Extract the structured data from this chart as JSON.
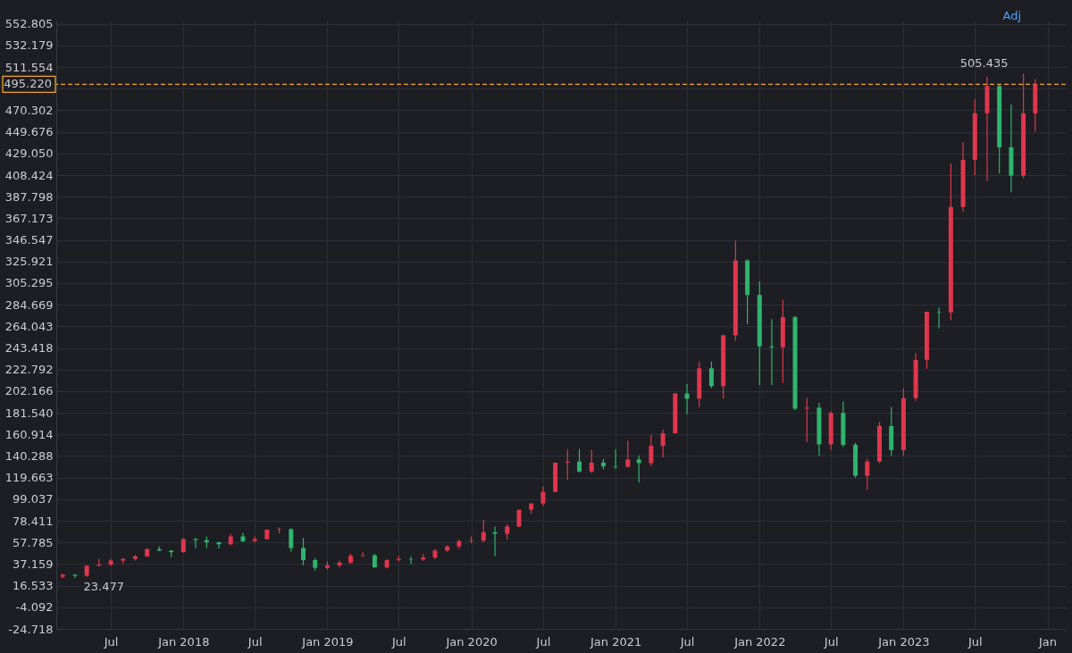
{
  "chart_data": {
    "type": "candlestick",
    "x": [
      "2017-03",
      "2017-04",
      "2017-05",
      "2017-06",
      "2017-07",
      "2017-08",
      "2017-09",
      "2017-10",
      "2017-11",
      "2017-12",
      "2018-01",
      "2018-02",
      "2018-03",
      "2018-04",
      "2018-05",
      "2018-06",
      "2018-07",
      "2018-08",
      "2018-09",
      "2018-10",
      "2018-11",
      "2018-12",
      "2019-01",
      "2019-02",
      "2019-03",
      "2019-04",
      "2019-05",
      "2019-06",
      "2019-07",
      "2019-08",
      "2019-09",
      "2019-10",
      "2019-11",
      "2019-12",
      "2020-01",
      "2020-02",
      "2020-03",
      "2020-04",
      "2020-05",
      "2020-06",
      "2020-07",
      "2020-08",
      "2020-09",
      "2020-10",
      "2020-11",
      "2020-12",
      "2021-01",
      "2021-02",
      "2021-03",
      "2021-04",
      "2021-05",
      "2021-06",
      "2021-07",
      "2021-08",
      "2021-09",
      "2021-10",
      "2021-11",
      "2021-12",
      "2022-01",
      "2022-02",
      "2022-03",
      "2022-04",
      "2022-05",
      "2022-06",
      "2022-07",
      "2022-08",
      "2022-09",
      "2022-10",
      "2022-11",
      "2022-12",
      "2023-01",
      "2023-02",
      "2023-03",
      "2023-04",
      "2023-05",
      "2023-06",
      "2023-07",
      "2023-08",
      "2023-09",
      "2023-10",
      "2023-11",
      "2023-12"
    ],
    "ohlc": [
      [
        25,
        28,
        23.477,
        27
      ],
      [
        27,
        27.5,
        24,
        26
      ],
      [
        26,
        36,
        25,
        35.5
      ],
      [
        35.5,
        42,
        35,
        36.5
      ],
      [
        36.5,
        42,
        35.5,
        40.5
      ],
      [
        40.5,
        43,
        37,
        42
      ],
      [
        42,
        46,
        40.5,
        44.5
      ],
      [
        44.5,
        52,
        44,
        51.5
      ],
      [
        51.5,
        54,
        49.5,
        50
      ],
      [
        50,
        50.5,
        44,
        48.5
      ],
      [
        48.5,
        62,
        48,
        61
      ],
      [
        61,
        62,
        52,
        60
      ],
      [
        60,
        63.5,
        52.5,
        58
      ],
      [
        58,
        58.5,
        52,
        56
      ],
      [
        56,
        66,
        55.5,
        63.5
      ],
      [
        63.5,
        67,
        58,
        59
      ],
      [
        59,
        63.5,
        58,
        61
      ],
      [
        61,
        70,
        60.5,
        70
      ],
      [
        70,
        72,
        66.5,
        70.5
      ],
      [
        70.5,
        71.5,
        49,
        52.5
      ],
      [
        52.5,
        62,
        36,
        41
      ],
      [
        41,
        43,
        31,
        33.5
      ],
      [
        33.5,
        40,
        32,
        36
      ],
      [
        36,
        40.5,
        34,
        38.5
      ],
      [
        38.5,
        47,
        37.5,
        45
      ],
      [
        45,
        48.5,
        44,
        45.5
      ],
      [
        45.5,
        47,
        33.5,
        34
      ],
      [
        34,
        41.5,
        33,
        41
      ],
      [
        41,
        45,
        39.5,
        42
      ],
      [
        42,
        44.5,
        37,
        41.5
      ],
      [
        41.5,
        47,
        40,
        43.5
      ],
      [
        43.5,
        51.5,
        42,
        50
      ],
      [
        50,
        55,
        49,
        54
      ],
      [
        54,
        60.5,
        51.5,
        59
      ],
      [
        59,
        63.5,
        57,
        59.5
      ],
      [
        59.5,
        79,
        58,
        67.5
      ],
      [
        67.5,
        73,
        44.5,
        66
      ],
      [
        66,
        75,
        60.5,
        73
      ],
      [
        73,
        89,
        72.5,
        89
      ],
      [
        89,
        95,
        85,
        95
      ],
      [
        95,
        111,
        93,
        106
      ],
      [
        106,
        134,
        106,
        134
      ],
      [
        134,
        147,
        117.5,
        135
      ],
      [
        135,
        147,
        124.5,
        125.5
      ],
      [
        125.5,
        146,
        124,
        134
      ],
      [
        134,
        137.5,
        127.5,
        130.5
      ],
      [
        130.5,
        147,
        128,
        130
      ],
      [
        130,
        155,
        129.5,
        137
      ],
      [
        137,
        141,
        115,
        133.5
      ],
      [
        133.5,
        160.5,
        131,
        150
      ],
      [
        150,
        165.5,
        139,
        162
      ],
      [
        162,
        200.5,
        162,
        200
      ],
      [
        200,
        209,
        180,
        195
      ],
      [
        195,
        230,
        187,
        224
      ],
      [
        224,
        230.5,
        205,
        207
      ],
      [
        207,
        256,
        195,
        255.5
      ],
      [
        255.5,
        346,
        250,
        327
      ],
      [
        327,
        328,
        266,
        294
      ],
      [
        294,
        307,
        208,
        245
      ],
      [
        245,
        271,
        208,
        244
      ],
      [
        244,
        289.5,
        210,
        273
      ],
      [
        273,
        274,
        184,
        185.5
      ],
      [
        185.5,
        196,
        153.5,
        186.5
      ],
      [
        186.5,
        191,
        140.5,
        151.5
      ],
      [
        151.5,
        183,
        146,
        181.5
      ],
      [
        181.5,
        192.5,
        149,
        151
      ],
      [
        151,
        153,
        119.5,
        121.5
      ],
      [
        121.5,
        138,
        108,
        135
      ],
      [
        135,
        173,
        133.5,
        169
      ],
      [
        169,
        187,
        140.5,
        146
      ],
      [
        146,
        205,
        140.5,
        195.5
      ],
      [
        195.5,
        238.5,
        193,
        232
      ],
      [
        232,
        278,
        223.5,
        278
      ],
      [
        278,
        282,
        262,
        277.5
      ],
      [
        277.5,
        419.5,
        270,
        378
      ],
      [
        378,
        440,
        373.5,
        423
      ],
      [
        423,
        481,
        408.5,
        467.5
      ],
      [
        467.5,
        502.5,
        403,
        493.5
      ],
      [
        493.5,
        494.5,
        410,
        435
      ],
      [
        435,
        476,
        392,
        408
      ],
      [
        408,
        505.435,
        405.5,
        467.5
      ],
      [
        467.5,
        500,
        450,
        495.22
      ]
    ],
    "colors": [
      "#e0364d",
      "#2fb46c",
      "#e0364d",
      "#e0364d",
      "#e0364d",
      "#e0364d",
      "#e0364d",
      "#e0364d",
      "#2fb46c",
      "#2fb46c",
      "#e0364d",
      "#2fb46c",
      "#2fb46c",
      "#2fb46c",
      "#e0364d",
      "#2fb46c",
      "#e0364d",
      "#e0364d",
      "#e0364d",
      "#2fb46c",
      "#2fb46c",
      "#2fb46c",
      "#e0364d",
      "#e0364d",
      "#e0364d",
      "#e0364d",
      "#2fb46c",
      "#e0364d",
      "#e0364d",
      "#2fb46c",
      "#e0364d",
      "#e0364d",
      "#e0364d",
      "#e0364d",
      "#e0364d",
      "#e0364d",
      "#2fb46c",
      "#e0364d",
      "#e0364d",
      "#e0364d",
      "#e0364d",
      "#e0364d",
      "#e0364d",
      "#2fb46c",
      "#e0364d",
      "#2fb46c",
      "#2fb46c",
      "#e0364d",
      "#2fb46c",
      "#e0364d",
      "#e0364d",
      "#e0364d",
      "#2fb46c",
      "#e0364d",
      "#2fb46c",
      "#e0364d",
      "#e0364d",
      "#2fb46c",
      "#2fb46c",
      "#2fb46c",
      "#e0364d",
      "#2fb46c",
      "#e0364d",
      "#2fb46c",
      "#e0364d",
      "#2fb46c",
      "#2fb46c",
      "#e0364d",
      "#e0364d",
      "#2fb46c",
      "#e0364d",
      "#e0364d",
      "#e0364d",
      "#2fb46c",
      "#e0364d",
      "#e0364d",
      "#e0364d",
      "#e0364d",
      "#2fb46c",
      "#2fb46c",
      "#e0364d",
      "#e0364d"
    ],
    "xlim": [
      "2017-02-24",
      "2024-02-05"
    ],
    "xticks": [
      {
        "value": "2017-07",
        "label": "Jul"
      },
      {
        "value": "2018-01",
        "label": "Jan 2018"
      },
      {
        "value": "2018-07",
        "label": "Jul"
      },
      {
        "value": "2019-01",
        "label": "Jan 2019"
      },
      {
        "value": "2019-07",
        "label": "Jul"
      },
      {
        "value": "2020-01",
        "label": "Jan 2020"
      },
      {
        "value": "2020-07",
        "label": "Jul"
      },
      {
        "value": "2021-01",
        "label": "Jan 2021"
      },
      {
        "value": "2021-07",
        "label": "Jul"
      },
      {
        "value": "2022-01",
        "label": "Jan 2022"
      },
      {
        "value": "2022-07",
        "label": "Jul"
      },
      {
        "value": "2023-01",
        "label": "Jan 2023"
      },
      {
        "value": "2023-07",
        "label": "Jul"
      },
      {
        "value": "2024-01",
        "label": "Jan"
      }
    ],
    "ylim": [
      -24.718,
      556
    ],
    "yticks": [
      552.805,
      532.179,
      511.554,
      {
        "value": 490.928,
        "label": null
      },
      470.302,
      449.676,
      {
        "value": 429.05,
        "label": "429.050"
      },
      408.424,
      387.798,
      367.173,
      346.547,
      325.921,
      305.295,
      284.669,
      264.043,
      243.418,
      222.792,
      202.166,
      {
        "value": 181.54,
        "label": "181.540"
      },
      160.914,
      140.288,
      119.663,
      99.037,
      78.411,
      57.785,
      37.159,
      16.533,
      -4.092,
      -24.718
    ],
    "grid": true,
    "ref_lines": [
      {
        "axis": "y",
        "value": 495.22,
        "label": "495.220",
        "color": "#f0a22e",
        "line_style": "dashed"
      }
    ],
    "annotations": [
      {
        "text": "505.435",
        "x": "2023-11",
        "y": 505.435
      },
      {
        "text": "23.477",
        "x": "2017-03",
        "y": 23.477
      },
      "Adj"
    ]
  }
}
